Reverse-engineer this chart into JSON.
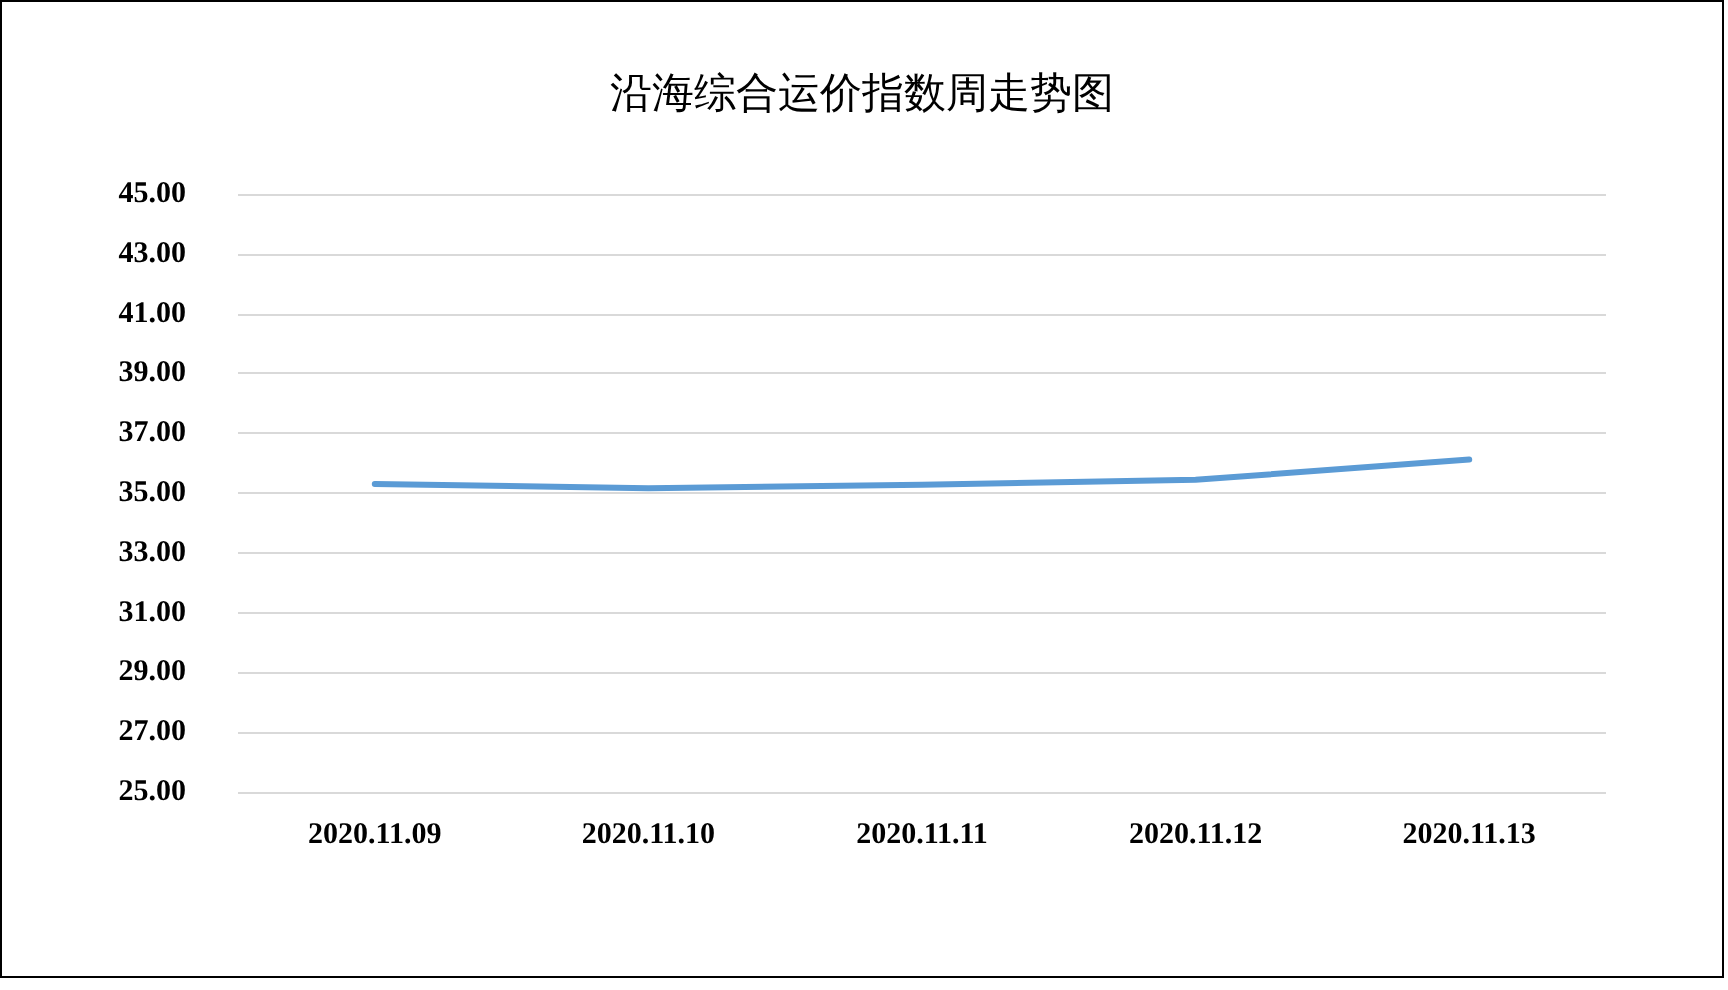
{
  "chart_data": {
    "type": "line",
    "title": "沿海综合运价指数周走势图",
    "categories": [
      "2020.11.09",
      "2020.11.10",
      "2020.11.11",
      "2020.11.12",
      "2020.11.13"
    ],
    "series": [
      {
        "color": "#5b9bd5",
        "values": [
          35.3,
          35.16,
          35.28,
          35.44,
          36.12
        ]
      }
    ],
    "ylim": [
      25,
      45
    ],
    "yticks": [
      {
        "value": 25,
        "label": "25.00"
      },
      {
        "value": 27,
        "label": "27.00"
      },
      {
        "value": 29,
        "label": "29.00"
      },
      {
        "value": 31,
        "label": "31.00"
      },
      {
        "value": 33,
        "label": "33.00"
      },
      {
        "value": 35,
        "label": "35.00"
      },
      {
        "value": 37,
        "label": "37.00"
      },
      {
        "value": 39,
        "label": "39.00"
      },
      {
        "value": 41,
        "label": "41.00"
      },
      {
        "value": 43,
        "label": "43.00"
      },
      {
        "value": 45,
        "label": "45.00"
      }
    ],
    "grid": "y",
    "marker": "none",
    "line_style": "solid"
  }
}
